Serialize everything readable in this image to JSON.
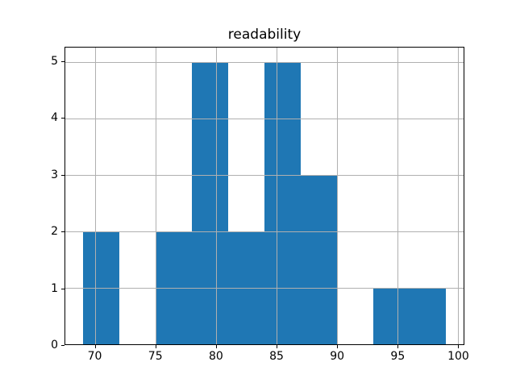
{
  "chart_data": {
    "type": "bar",
    "subtype": "histogram",
    "title": "readability",
    "xlabel": "",
    "ylabel": "",
    "bin_edges": [
      69,
      72,
      75,
      78,
      81,
      84,
      87,
      90,
      93,
      96,
      99
    ],
    "counts": [
      2,
      0,
      2,
      5,
      2,
      5,
      3,
      0,
      1,
      1
    ],
    "xlim": [
      67.5,
      100.5
    ],
    "ylim": [
      0,
      5.25
    ],
    "xticks": [
      "70",
      "75",
      "80",
      "85",
      "90",
      "95",
      "100"
    ],
    "xtick_values": [
      70,
      75,
      80,
      85,
      90,
      95,
      100
    ],
    "yticks": [
      "0",
      "1",
      "2",
      "3",
      "4",
      "5"
    ],
    "ytick_values": [
      0,
      1,
      2,
      3,
      4,
      5
    ],
    "grid": true,
    "grid_above_bars": true,
    "legend": "none",
    "bar_color": "#1f77b4",
    "grid_color": "#b0b0b0",
    "spine_color": "#000000",
    "text_color": "#000000",
    "background_color": "#ffffff"
  }
}
